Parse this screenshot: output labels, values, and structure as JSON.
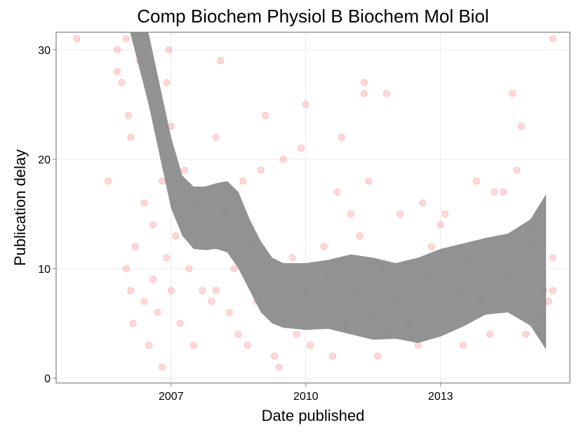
{
  "chart_data": {
    "type": "scatter",
    "title": "Comp Biochem Physiol B Biochem Mol Biol",
    "x_label": "Date published",
    "y_label": "Publication delay",
    "xlim": [
      2004.44,
      2015.88
    ],
    "ylim": [
      -0.45,
      31.6
    ],
    "xticks": [
      2007,
      2010,
      2013
    ],
    "yticks": [
      0,
      10,
      20,
      30
    ],
    "grid": true,
    "series": [
      {
        "color": "#ff0000",
        "x": [
          2004.9,
          2005.6,
          2005.8,
          2005.8,
          2005.9,
          2006.0,
          2006.0,
          2006.05,
          2006.1,
          2006.1,
          2006.15,
          2006.2,
          2006.3,
          2006.4,
          2006.4,
          2006.5,
          2006.6,
          2006.6,
          2006.7,
          2006.8,
          2006.8,
          2006.9,
          2006.9,
          2006.95,
          2007.0,
          2007.0,
          2007.1,
          2007.2,
          2007.3,
          2007.4,
          2007.5,
          2007.6,
          2007.7,
          2007.8,
          2007.9,
          2008.0,
          2008.0,
          2008.1,
          2008.2,
          2008.3,
          2008.4,
          2008.5,
          2008.6,
          2008.7,
          2008.8,
          2008.9,
          2009.0,
          2009.1,
          2009.2,
          2009.3,
          2009.4,
          2009.5,
          2009.6,
          2009.7,
          2009.8,
          2009.9,
          2010.0,
          2010.0,
          2010.1,
          2010.3,
          2010.4,
          2010.5,
          2010.6,
          2010.7,
          2010.8,
          2010.9,
          2011.0,
          2011.1,
          2011.2,
          2011.3,
          2011.3,
          2011.4,
          2011.5,
          2011.6,
          2011.7,
          2011.8,
          2011.9,
          2012.0,
          2012.1,
          2012.3,
          2012.5,
          2012.6,
          2012.7,
          2012.8,
          2013.0,
          2013.1,
          2013.2,
          2013.4,
          2013.5,
          2013.6,
          2013.8,
          2013.9,
          2014.1,
          2014.2,
          2014.4,
          2014.5,
          2014.6,
          2014.7,
          2014.8,
          2014.9,
          2015.0,
          2015.1,
          2015.2,
          2015.3,
          2015.4,
          2015.5,
          2015.5,
          2015.5
        ],
        "values": [
          31,
          18,
          28,
          30,
          27,
          31,
          10,
          24,
          22,
          8,
          5,
          12,
          29,
          16,
          7,
          3,
          14,
          9,
          6,
          1,
          18,
          27,
          11,
          30,
          23,
          8,
          13,
          5,
          19,
          10,
          3,
          16,
          8,
          12,
          7,
          22,
          8,
          29,
          15,
          6,
          10,
          4,
          18,
          3,
          12,
          7,
          19,
          24,
          9,
          2,
          1,
          20,
          6,
          11,
          4,
          21,
          25,
          8,
          3,
          6,
          12,
          9,
          2,
          17,
          22,
          5,
          15,
          8,
          13,
          27,
          26,
          18,
          6,
          2,
          10,
          26,
          4,
          7,
          15,
          5,
          3,
          16,
          9,
          12,
          14,
          15,
          6,
          8,
          3,
          11,
          18,
          7,
          4,
          17,
          17,
          9,
          26,
          19,
          23,
          4,
          12,
          14,
          6,
          8,
          7,
          31,
          11,
          8
        ]
      }
    ],
    "band": {
      "color": "#8c8c8c",
      "x": [
        2006.0,
        2006.5,
        2007.0,
        2007.25,
        2007.5,
        2007.75,
        2008.0,
        2008.25,
        2008.5,
        2008.75,
        2009.0,
        2009.25,
        2009.5,
        2010.0,
        2010.5,
        2011.0,
        2011.5,
        2012.0,
        2012.5,
        2013.0,
        2013.5,
        2014.0,
        2014.5,
        2015.0,
        2015.35
      ],
      "lower": [
        33,
        25,
        15.5,
        13,
        11.8,
        11.7,
        11.8,
        11.5,
        10,
        8,
        6,
        5,
        4.6,
        4.4,
        4.5,
        4,
        3.5,
        3.6,
        3.2,
        3.8,
        4.7,
        5.8,
        6,
        4.8,
        2.6
      ],
      "upper": [
        34.5,
        31.5,
        22,
        18.5,
        17.5,
        17.5,
        17.8,
        18,
        17,
        14.5,
        12.5,
        11,
        10.5,
        10.5,
        10.8,
        11.3,
        11,
        10.5,
        11,
        11.8,
        12.3,
        12.8,
        13.2,
        14.5,
        16.8
      ]
    }
  }
}
